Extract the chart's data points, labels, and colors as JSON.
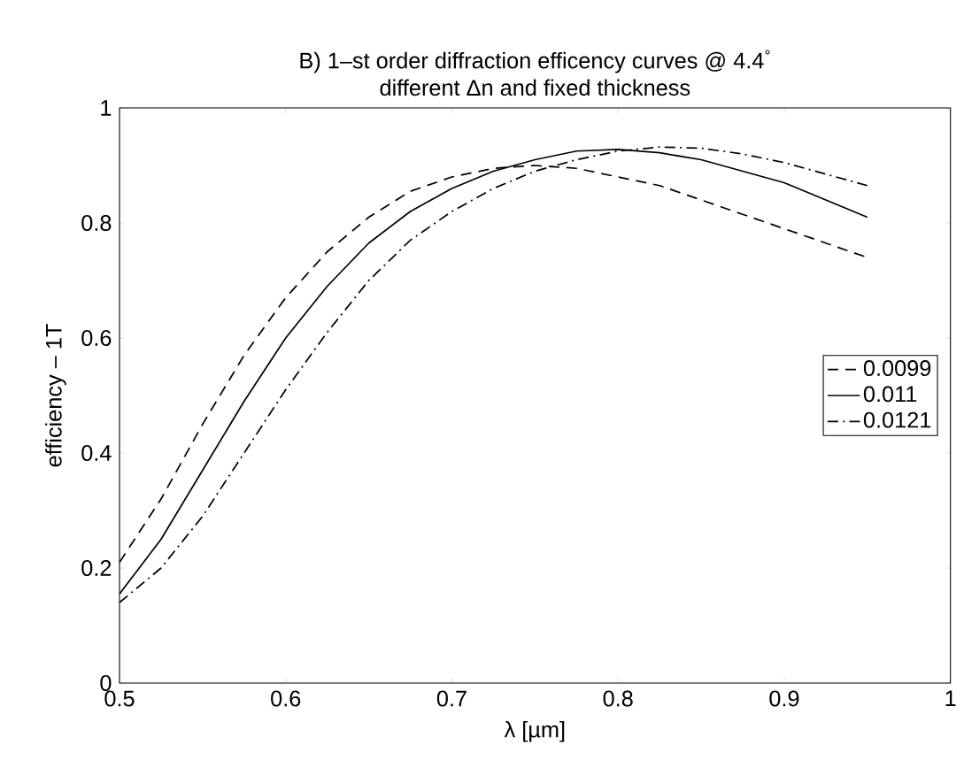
{
  "chart_data": {
    "type": "line",
    "title": "B) 1–st order diffraction efficency curves @ 4.4$^{°}$",
    "subtitle": "different Δn and fixed thickness",
    "xlabel": "λ [µm]",
    "ylabel": "efficiency – 1T",
    "xlim": [
      0.5,
      1
    ],
    "ylim": [
      0,
      1
    ],
    "xticks": [
      0.5,
      0.6,
      0.7,
      0.8,
      0.9,
      1
    ],
    "yticks": [
      0,
      0.2,
      0.4,
      0.6,
      0.8,
      1
    ],
    "grid": false,
    "legend": "right",
    "marker": "none",
    "x": [
      0.5,
      0.525,
      0.55,
      0.575,
      0.6,
      0.625,
      0.65,
      0.675,
      0.7,
      0.725,
      0.75,
      0.775,
      0.8,
      0.825,
      0.85,
      0.875,
      0.9,
      0.925,
      0.95
    ],
    "series": [
      {
        "name": "0.0099",
        "color": "#000000",
        "line_style": "dashed",
        "values": [
          0.21,
          0.32,
          0.45,
          0.57,
          0.67,
          0.75,
          0.81,
          0.855,
          0.88,
          0.895,
          0.9,
          0.895,
          0.88,
          0.865,
          0.84,
          0.815,
          0.79,
          0.765,
          0.74
        ]
      },
      {
        "name": "0.011",
        "color": "#000000",
        "line_style": "solid",
        "values": [
          0.155,
          0.25,
          0.37,
          0.49,
          0.6,
          0.69,
          0.765,
          0.82,
          0.86,
          0.89,
          0.91,
          0.925,
          0.928,
          0.922,
          0.91,
          0.89,
          0.87,
          0.84,
          0.81
        ]
      },
      {
        "name": "0.0121",
        "color": "#000000",
        "line_style": "dashdot",
        "values": [
          0.14,
          0.2,
          0.29,
          0.4,
          0.51,
          0.61,
          0.7,
          0.77,
          0.82,
          0.86,
          0.89,
          0.91,
          0.925,
          0.932,
          0.93,
          0.92,
          0.905,
          0.885,
          0.865
        ]
      }
    ]
  }
}
